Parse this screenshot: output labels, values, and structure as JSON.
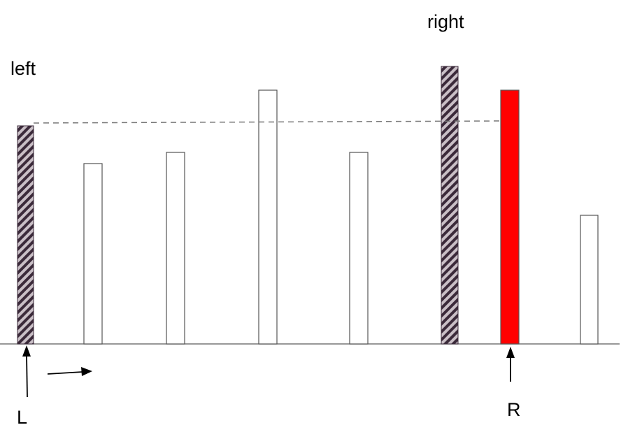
{
  "labels": {
    "left": "left",
    "right": "right",
    "L": "L",
    "R": "R"
  },
  "bars": [
    {
      "height": 312,
      "style": "hatched"
    },
    {
      "height": 258,
      "style": "outline"
    },
    {
      "height": 274,
      "style": "outline"
    },
    {
      "height": 363,
      "style": "outline"
    },
    {
      "height": 274,
      "style": "outline"
    },
    {
      "height": 397,
      "style": "hatched"
    },
    {
      "height": 363,
      "style": "filled"
    },
    {
      "height": 184,
      "style": "outline"
    }
  ],
  "colors": {
    "hatch_dark": "#3b2a3a",
    "hatch_light": "#c9bfc6",
    "highlight": "#ff0000",
    "outline": "#555555",
    "dashed": "#777777"
  }
}
